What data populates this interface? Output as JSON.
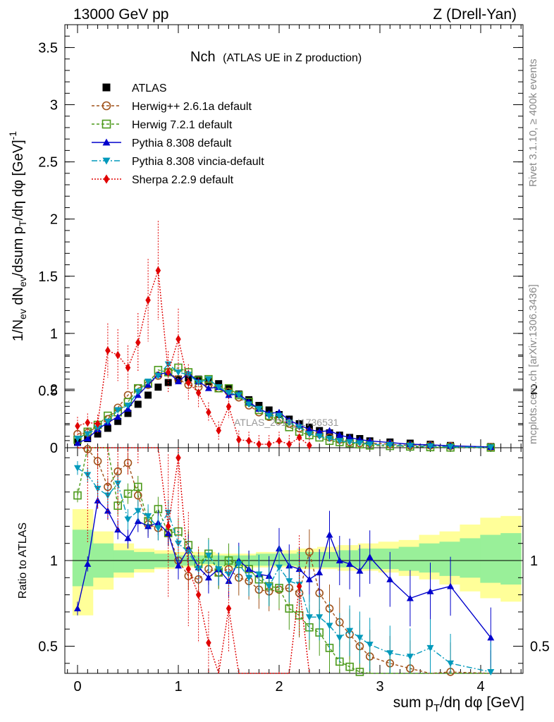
{
  "header": {
    "left": "13000 GeV pp",
    "right": "Z (Drell-Yan)"
  },
  "side_labels": {
    "rivet": "Rivet 3.1.10, ≥ 400k events",
    "mcplots": "mcplots.cern.ch [arXiv:1306.3436]"
  },
  "chart_data": {
    "type": "scatter",
    "title": "Nch",
    "subtitle": "(ATLAS UE in Z production)",
    "watermark": "ATLAS_2019_I1736531",
    "xlabel": "sum pT/dη dφ [GeV]",
    "ylabel": "1/Nev dNev/dsum pT/dη dφ [GeV]⁻¹",
    "ratio_ylabel": "Ratio to ATLAS",
    "xlim": [
      -0.15,
      4.45
    ],
    "ylim": [
      0,
      3.7
    ],
    "ratio_ylim": [
      0.33,
      2.28
    ],
    "xticks": [
      0,
      1,
      2,
      3,
      4
    ],
    "yticks": [
      0.5,
      1,
      1.5,
      2,
      2.5,
      3,
      3.5
    ],
    "ratio_yticks": [
      0.5,
      1,
      2
    ],
    "legend": [
      {
        "label": "ATLAS",
        "color": "#000000",
        "marker": "square",
        "dash": "none"
      },
      {
        "label": "Herwig++ 2.6.1a default",
        "color": "#a0521a",
        "marker": "circle-open",
        "dash": "4,3"
      },
      {
        "label": "Herwig 7.2.1 default",
        "color": "#4c9a1a",
        "marker": "square-open",
        "dash": "4,3"
      },
      {
        "label": "Pythia 8.308 default",
        "color": "#0000cc",
        "marker": "triangle-up",
        "dash": "none"
      },
      {
        "label": "Pythia 8.308 vincia-default",
        "color": "#0099bb",
        "marker": "triangle-down",
        "dash": "8,3,2,3"
      },
      {
        "label": "Sherpa 2.2.9 default",
        "color": "#e00000",
        "marker": "diamond",
        "dash": "2,2"
      }
    ],
    "x": [
      0.0,
      0.1,
      0.2,
      0.3,
      0.4,
      0.5,
      0.6,
      0.7,
      0.8,
      0.9,
      1.0,
      1.1,
      1.2,
      1.3,
      1.4,
      1.5,
      1.6,
      1.7,
      1.8,
      1.9,
      2.0,
      2.1,
      2.2,
      2.3,
      2.4,
      2.5,
      2.6,
      2.7,
      2.8,
      2.9,
      3.1,
      3.3,
      3.5,
      3.7,
      4.1
    ],
    "series": [
      {
        "name": "ATLAS",
        "values": [
          0.05,
          0.08,
          0.12,
          0.17,
          0.23,
          0.3,
          0.38,
          0.46,
          0.53,
          0.57,
          0.6,
          0.61,
          0.6,
          0.58,
          0.56,
          0.52,
          0.47,
          0.42,
          0.37,
          0.33,
          0.29,
          0.25,
          0.21,
          0.18,
          0.15,
          0.13,
          0.11,
          0.09,
          0.08,
          0.06,
          0.05,
          0.04,
          0.03,
          0.02,
          0.01
        ]
      },
      {
        "name": "Herwig++ 2.6.1a default",
        "values": [
          0.12,
          0.13,
          0.19,
          0.25,
          0.35,
          0.46,
          0.52,
          0.55,
          0.63,
          0.66,
          0.6,
          0.55,
          0.53,
          0.55,
          0.52,
          0.49,
          0.44,
          0.37,
          0.31,
          0.27,
          0.24,
          0.21,
          0.17,
          0.14,
          0.12,
          0.09,
          0.07,
          0.05,
          0.04,
          0.04,
          0.03,
          0.02,
          0.02,
          0.015,
          0.007
        ]
      },
      {
        "name": "Herwig 7.2.1 default",
        "values": [
          0.07,
          0.14,
          0.2,
          0.28,
          0.31,
          0.4,
          0.52,
          0.56,
          0.68,
          0.66,
          0.7,
          0.66,
          0.59,
          0.6,
          0.52,
          0.52,
          0.46,
          0.4,
          0.33,
          0.28,
          0.25,
          0.18,
          0.14,
          0.11,
          0.09,
          0.06,
          0.05,
          0.04,
          0.03,
          0.02,
          0.015,
          0.01,
          0.005,
          0.002,
          0.001
        ]
      },
      {
        "name": "Pythia 8.308 default",
        "values": [
          0.04,
          0.08,
          0.16,
          0.22,
          0.27,
          0.34,
          0.46,
          0.55,
          0.64,
          0.66,
          0.58,
          0.65,
          0.58,
          0.52,
          0.53,
          0.46,
          0.47,
          0.4,
          0.34,
          0.3,
          0.31,
          0.24,
          0.2,
          0.16,
          0.14,
          0.15,
          0.11,
          0.09,
          0.07,
          0.06,
          0.045,
          0.031,
          0.025,
          0.017,
          0.006
        ]
      },
      {
        "name": "Pythia 8.308 vincia-default",
        "values": [
          0.08,
          0.12,
          0.17,
          0.23,
          0.33,
          0.37,
          0.49,
          0.58,
          0.63,
          0.73,
          0.66,
          0.64,
          0.57,
          0.6,
          0.53,
          0.48,
          0.46,
          0.38,
          0.34,
          0.28,
          0.28,
          0.22,
          0.18,
          0.12,
          0.1,
          0.08,
          0.06,
          0.05,
          0.04,
          0.03,
          0.025,
          0.017,
          0.013,
          0.008,
          0.003
        ]
      },
      {
        "name": "Sherpa 2.2.9 default",
        "values": [
          0.19,
          0.22,
          0.21,
          0.85,
          0.81,
          0.7,
          0.92,
          1.29,
          1.55,
          0.66,
          0.95,
          0.57,
          0.48,
          0.31,
          0.15,
          0.36,
          0.07,
          0.06,
          0.03,
          0.03,
          0.06,
          0.03,
          0.09,
          0.02
        ]
      }
    ],
    "ratio_series": [
      {
        "name": "Herwig++ 2.6.1a default",
        "values": [
          2.25,
          1.65,
          1.58,
          1.43,
          1.52,
          1.57,
          1.38,
          1.21,
          1.19,
          1.16,
          1.0,
          0.91,
          0.89,
          0.95,
          0.93,
          0.95,
          0.9,
          0.88,
          0.83,
          0.82,
          0.83,
          0.84,
          0.81,
          1.05,
          0.81,
          0.72,
          0.64,
          0.57,
          0.5,
          0.44,
          0.4,
          0.37,
          0.33,
          0.35,
          0.3
        ]
      },
      {
        "name": "Herwig 7.2.1 default",
        "values": [
          1.38,
          1.73,
          1.73,
          1.73,
          1.32,
          1.39,
          1.43,
          1.23,
          1.3,
          1.16,
          1.17,
          1.09,
          0.98,
          1.04,
          0.93,
          1.0,
          0.98,
          0.95,
          0.89,
          0.85,
          0.84,
          0.72,
          0.68,
          0.61,
          0.58,
          0.49,
          0.41,
          0.38,
          0.35,
          0.33,
          0.3,
          0.28,
          0.25,
          0.22,
          0.2
        ]
      },
      {
        "name": "Pythia 8.308 default",
        "values": [
          0.72,
          0.98,
          1.35,
          1.29,
          1.18,
          1.13,
          1.23,
          1.2,
          1.22,
          1.16,
          0.97,
          1.07,
          0.96,
          0.9,
          0.95,
          0.88,
          1.0,
          0.95,
          0.92,
          0.91,
          1.07,
          0.97,
          0.95,
          0.89,
          0.93,
          1.15,
          1.0,
          0.98,
          0.94,
          1.02,
          0.89,
          0.78,
          0.82,
          0.85,
          0.55
        ]
      },
      {
        "name": "Pythia 8.308 vincia-default",
        "values": [
          1.54,
          1.5,
          1.42,
          1.38,
          1.45,
          1.24,
          1.29,
          1.26,
          1.19,
          1.28,
          1.1,
          1.05,
          0.95,
          1.03,
          0.95,
          0.92,
          0.98,
          0.9,
          0.92,
          0.85,
          0.96,
          0.88,
          0.86,
          0.67,
          0.67,
          0.62,
          0.55,
          0.59,
          0.55,
          0.51,
          0.46,
          0.44,
          0.49,
          0.4,
          0.35
        ]
      },
      {
        "name": "Sherpa 2.2.9 default",
        "values": [
          3.3,
          1.7,
          2.0,
          1.9,
          1.8,
          2.3,
          2.4,
          2.9,
          2.9,
          1.2,
          1.6,
          0.95,
          0.8,
          0.52,
          0.27,
          0.72,
          0.15,
          0.13,
          0.08,
          0.1,
          0.2,
          0.12,
          0.85,
          0.11
        ]
      }
    ],
    "ratio_band_outer": [
      [
        0.68,
        1.3
      ],
      [
        0.83,
        1.17
      ],
      [
        0.9,
        1.1
      ],
      [
        0.93,
        1.07
      ],
      [
        0.95,
        1.06
      ],
      [
        0.96,
        1.05
      ],
      [
        0.97,
        1.05
      ],
      [
        0.96,
        1.04
      ],
      [
        0.96,
        1.04
      ],
      [
        0.96,
        1.05
      ],
      [
        0.96,
        1.06
      ],
      [
        0.95,
        1.07
      ],
      [
        0.95,
        1.08
      ],
      [
        0.94,
        1.09
      ],
      [
        0.94,
        1.1
      ],
      [
        0.93,
        1.11
      ],
      [
        0.91,
        1.12
      ],
      [
        0.89,
        1.15
      ],
      [
        0.86,
        1.17
      ],
      [
        0.82,
        1.21
      ],
      [
        0.78,
        1.25
      ],
      [
        0.76,
        1.26
      ]
    ],
    "ratio_band_inner": [
      [
        0.85,
        1.18
      ],
      [
        0.9,
        1.1
      ],
      [
        0.93,
        1.06
      ],
      [
        0.95,
        1.05
      ],
      [
        0.96,
        1.04
      ],
      [
        0.97,
        1.03
      ],
      [
        0.98,
        1.03
      ],
      [
        0.97,
        1.03
      ],
      [
        0.97,
        1.03
      ],
      [
        0.97,
        1.04
      ],
      [
        0.97,
        1.04
      ],
      [
        0.96,
        1.05
      ],
      [
        0.96,
        1.05
      ],
      [
        0.96,
        1.06
      ],
      [
        0.95,
        1.07
      ],
      [
        0.95,
        1.07
      ],
      [
        0.94,
        1.08
      ],
      [
        0.93,
        1.1
      ],
      [
        0.91,
        1.11
      ],
      [
        0.9,
        1.13
      ],
      [
        0.87,
        1.15
      ],
      [
        0.86,
        1.16
      ]
    ]
  }
}
